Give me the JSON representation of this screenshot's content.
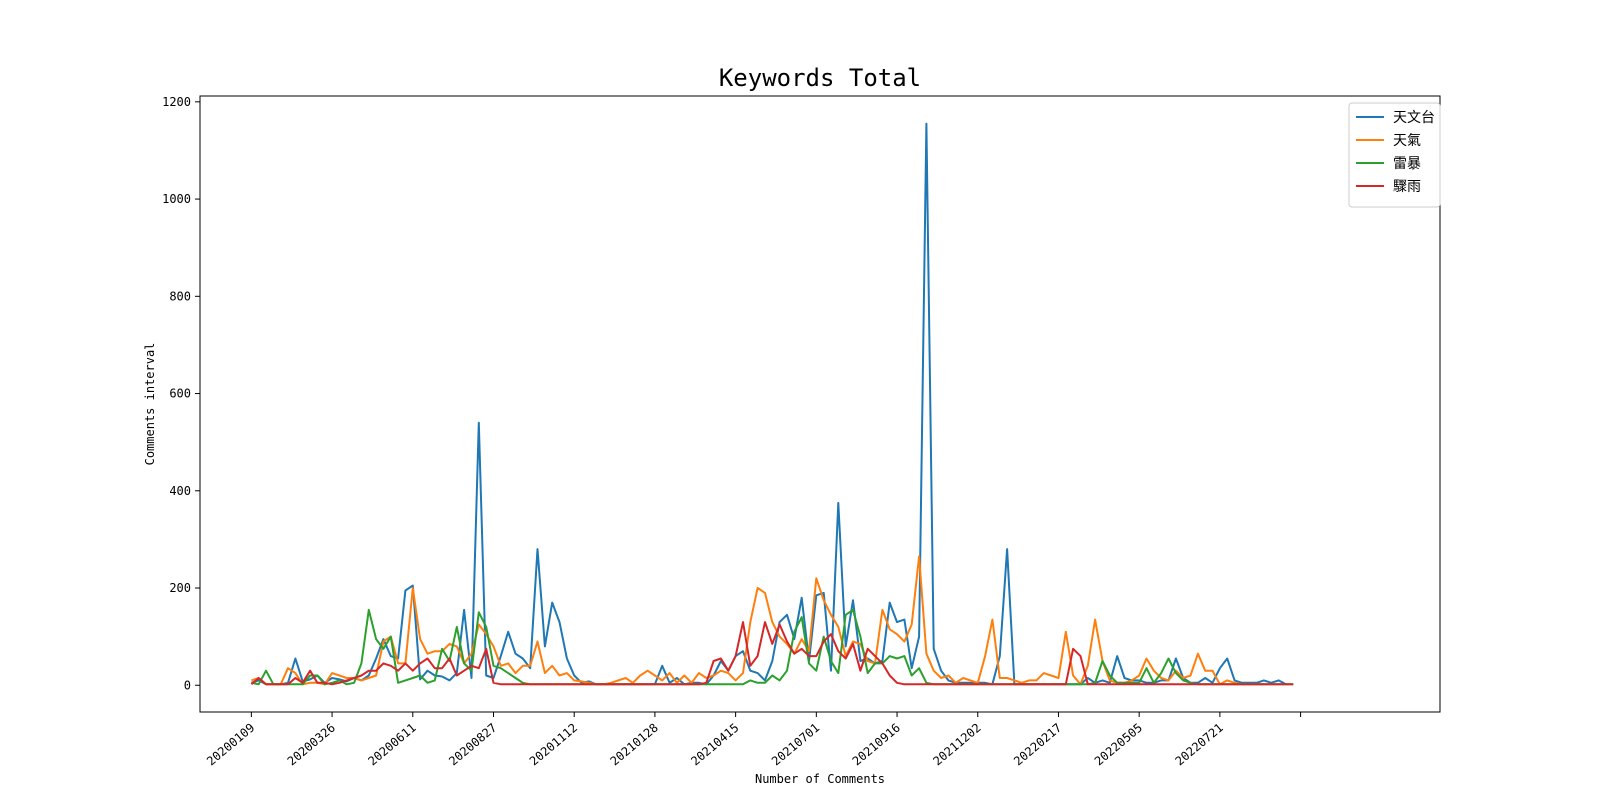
{
  "chart_data": {
    "type": "line",
    "title": "Keywords Total",
    "xlabel": "Number of Comments",
    "ylabel": "Comments interval",
    "xlim": [
      -7,
      162
    ],
    "ylim": [
      -55,
      1212
    ],
    "grid": false,
    "legend_position": "top-right",
    "x_ticks": [
      {
        "x": 0,
        "label": "20200109"
      },
      {
        "x": 11,
        "label": "20200326"
      },
      {
        "x": 22,
        "label": "20200611"
      },
      {
        "x": 33,
        "label": "20200827"
      },
      {
        "x": 44,
        "label": "20201112"
      },
      {
        "x": 55,
        "label": "20210128"
      },
      {
        "x": 66,
        "label": "20210415"
      },
      {
        "x": 77,
        "label": "20210701"
      },
      {
        "x": 88,
        "label": "20210916"
      },
      {
        "x": 99,
        "label": "20211202"
      },
      {
        "x": 110,
        "label": "20220217"
      },
      {
        "x": 121,
        "label": "20220505"
      },
      {
        "x": 132,
        "label": "20220721"
      },
      {
        "x": 143,
        "label": ""
      }
    ],
    "y_ticks": [
      0,
      200,
      400,
      600,
      800,
      1000,
      1200
    ],
    "series": [
      {
        "name": "天文台",
        "color": "#1f77b4",
        "values": [
          5,
          10,
          2,
          2,
          2,
          5,
          55,
          8,
          12,
          20,
          5,
          15,
          12,
          8,
          15,
          10,
          20,
          55,
          95,
          60,
          55,
          195,
          205,
          12,
          30,
          20,
          18,
          10,
          25,
          155,
          15,
          540,
          20,
          15,
          60,
          110,
          65,
          55,
          35,
          280,
          80,
          170,
          130,
          55,
          20,
          5,
          8,
          2,
          2,
          2,
          2,
          2,
          2,
          2,
          2,
          2,
          40,
          5,
          15,
          2,
          5,
          5,
          2,
          20,
          50,
          30,
          60,
          70,
          30,
          25,
          10,
          50,
          130,
          145,
          95,
          180,
          50,
          185,
          190,
          30,
          375,
          80,
          175,
          50,
          55,
          45,
          50,
          170,
          130,
          135,
          35,
          100,
          1155,
          75,
          30,
          10,
          5,
          5,
          5,
          5,
          5,
          2,
          60,
          280,
          2,
          2,
          2,
          2,
          2,
          2,
          2,
          2,
          2,
          2,
          15,
          5,
          10,
          5,
          60,
          15,
          10,
          10,
          5,
          5,
          10,
          10,
          55,
          15,
          5,
          5,
          15,
          5,
          35,
          55,
          10,
          5,
          5,
          5,
          10,
          5,
          10,
          2
        ]
      },
      {
        "name": "天氣",
        "color": "#ff7f0e",
        "values": [
          10,
          15,
          2,
          2,
          2,
          35,
          25,
          2,
          5,
          5,
          2,
          25,
          20,
          15,
          15,
          10,
          15,
          20,
          90,
          100,
          45,
          45,
          200,
          95,
          65,
          70,
          70,
          85,
          80,
          45,
          65,
          125,
          105,
          80,
          40,
          45,
          25,
          40,
          40,
          90,
          25,
          40,
          20,
          25,
          10,
          8,
          5,
          2,
          2,
          5,
          10,
          15,
          5,
          20,
          30,
          20,
          10,
          25,
          5,
          20,
          5,
          25,
          15,
          20,
          30,
          25,
          10,
          25,
          130,
          200,
          190,
          130,
          100,
          85,
          65,
          95,
          70,
          220,
          175,
          145,
          120,
          60,
          90,
          85,
          50,
          45,
          155,
          115,
          105,
          90,
          125,
          265,
          65,
          30,
          15,
          20,
          5,
          15,
          10,
          5,
          60,
          135,
          15,
          15,
          10,
          5,
          10,
          10,
          25,
          20,
          15,
          110,
          20,
          2,
          40,
          135,
          50,
          10,
          5,
          5,
          10,
          20,
          55,
          30,
          15,
          10,
          30,
          15,
          20,
          65,
          30,
          30,
          2,
          10,
          5,
          2,
          2,
          2,
          2
        ]
      },
      {
        "name": "雷暴",
        "color": "#2ca02c",
        "values": [
          5,
          2,
          30,
          2,
          2,
          2,
          2,
          2,
          20,
          20,
          2,
          5,
          10,
          2,
          5,
          45,
          155,
          95,
          75,
          100,
          5,
          10,
          15,
          20,
          5,
          10,
          75,
          50,
          120,
          45,
          30,
          150,
          120,
          40,
          35,
          25,
          15,
          5,
          2,
          2,
          2,
          2,
          2,
          2,
          2,
          2,
          2,
          2,
          2,
          2,
          2,
          2,
          2,
          2,
          2,
          2,
          2,
          2,
          2,
          2,
          2,
          2,
          2,
          2,
          2,
          2,
          2,
          2,
          10,
          5,
          5,
          20,
          10,
          30,
          110,
          140,
          45,
          30,
          100,
          50,
          25,
          145,
          155,
          100,
          25,
          45,
          45,
          60,
          55,
          60,
          20,
          35,
          5,
          2,
          2,
          2,
          2,
          2,
          2,
          2,
          2,
          2,
          2,
          2,
          2,
          2,
          2,
          2,
          2,
          2,
          2,
          2,
          2,
          2,
          2,
          5,
          50,
          20,
          5,
          5,
          5,
          5,
          35,
          5,
          25,
          55,
          25,
          10,
          5,
          2,
          2,
          2,
          2,
          2,
          2,
          2,
          2,
          2,
          2,
          2,
          2,
          2,
          2
        ]
      },
      {
        "name": "驟雨",
        "color": "#d62728",
        "values": [
          2,
          15,
          2,
          2,
          2,
          2,
          15,
          5,
          30,
          5,
          5,
          2,
          5,
          10,
          15,
          20,
          30,
          30,
          45,
          40,
          30,
          45,
          30,
          45,
          55,
          35,
          35,
          55,
          20,
          30,
          40,
          35,
          75,
          5,
          2,
          2,
          2,
          2,
          2,
          2,
          2,
          2,
          2,
          2,
          2,
          2,
          2,
          2,
          2,
          2,
          2,
          2,
          2,
          2,
          2,
          2,
          2,
          2,
          2,
          2,
          2,
          2,
          5,
          50,
          55,
          30,
          60,
          130,
          40,
          60,
          130,
          85,
          125,
          90,
          65,
          75,
          60,
          60,
          90,
          105,
          70,
          55,
          85,
          30,
          75,
          60,
          45,
          20,
          5,
          2,
          2,
          2,
          2,
          2,
          2,
          2,
          2,
          2,
          2,
          2,
          2,
          2,
          2,
          2,
          2,
          2,
          2,
          2,
          2,
          2,
          2,
          2,
          75,
          60,
          2,
          2,
          2,
          2,
          2,
          2,
          2,
          2,
          2,
          2,
          2,
          2,
          2,
          2,
          2,
          2,
          2,
          2,
          2,
          2,
          2,
          2,
          2,
          2,
          2,
          2,
          2,
          2,
          2
        ]
      }
    ]
  }
}
